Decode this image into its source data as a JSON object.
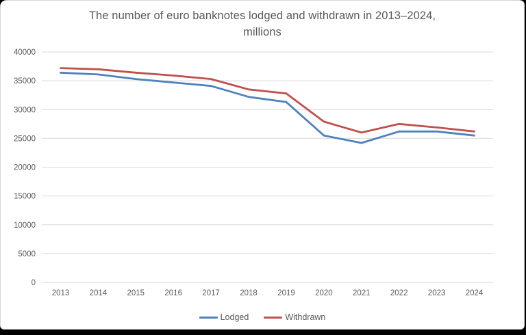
{
  "chart": {
    "title_line1": "The number of euro banknotes lodged and withdrawn in 2013–2024,",
    "title_line2": "millions"
  },
  "chart_data": {
    "type": "line",
    "title": "The number of euro banknotes lodged and withdrawn in 2013–2024, millions",
    "categories": [
      "2013",
      "2014",
      "2015",
      "2016",
      "2017",
      "2018",
      "2019",
      "2020",
      "2021",
      "2022",
      "2023",
      "2024"
    ],
    "series": [
      {
        "name": "Lodged",
        "color": "#4F81BD",
        "values": [
          36400,
          36100,
          35300,
          34700,
          34100,
          32200,
          31300,
          25500,
          24200,
          26200,
          26200,
          25500
        ]
      },
      {
        "name": "Withdrawn",
        "color": "#C0504D",
        "values": [
          37200,
          37000,
          36400,
          35900,
          35300,
          33500,
          32800,
          27900,
          26000,
          27500,
          26900,
          26200
        ]
      }
    ],
    "xlabel": "",
    "ylabel": "",
    "ylim": [
      0,
      40000
    ],
    "ytick_step": 5000,
    "grid": true,
    "gridline_color": "#d9d9d9",
    "legend_position": "bottom",
    "text_color": "#595959",
    "background": "#ffffff"
  }
}
